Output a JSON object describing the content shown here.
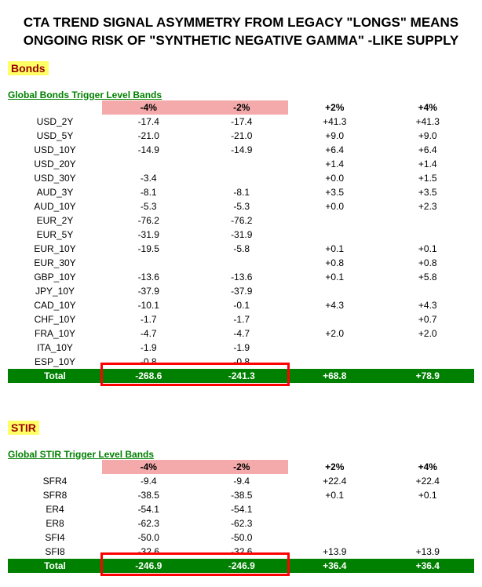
{
  "title_line1": "CTA TREND SIGNAL ASYMMETRY FROM LEGACY \"LONGS\" MEANS",
  "title_line2": "ONGOING RISK OF \"SYNTHETIC NEGATIVE GAMMA\" -LIKE SUPPLY",
  "colors": {
    "highlight_yellow": "#ffff66",
    "section_text": "#990000",
    "green_text": "#008000",
    "header_neg_bg": "#f4aaaa",
    "total_bg": "#008000",
    "total_text": "#ffffff",
    "red_box": "#ff0000",
    "background": "#ffffff"
  },
  "columns": {
    "c_neg4": "-4%",
    "c_neg2": "-2%",
    "c_pos2": "+2%",
    "c_pos4": "+4%"
  },
  "bonds": {
    "label": "Bonds",
    "subhead": "Global Bonds Trigger Level Bands",
    "rows": [
      {
        "name": "USD_2Y",
        "neg4": "-17.4",
        "neg2": "-17.4",
        "pos2": "+41.3",
        "pos4": "+41.3"
      },
      {
        "name": "USD_5Y",
        "neg4": "-21.0",
        "neg2": "-21.0",
        "pos2": "+9.0",
        "pos4": "+9.0"
      },
      {
        "name": "USD_10Y",
        "neg4": "-14.9",
        "neg2": "-14.9",
        "pos2": "+6.4",
        "pos4": "+6.4"
      },
      {
        "name": "USD_20Y",
        "neg4": "",
        "neg2": "",
        "pos2": "+1.4",
        "pos4": "+1.4"
      },
      {
        "name": "USD_30Y",
        "neg4": "-3.4",
        "neg2": "",
        "pos2": "+0.0",
        "pos4": "+1.5"
      },
      {
        "name": "AUD_3Y",
        "neg4": "-8.1",
        "neg2": "-8.1",
        "pos2": "+3.5",
        "pos4": "+3.5"
      },
      {
        "name": "AUD_10Y",
        "neg4": "-5.3",
        "neg2": "-5.3",
        "pos2": "+0.0",
        "pos4": "+2.3"
      },
      {
        "name": "EUR_2Y",
        "neg4": "-76.2",
        "neg2": "-76.2",
        "pos2": "",
        "pos4": ""
      },
      {
        "name": "EUR_5Y",
        "neg4": "-31.9",
        "neg2": "-31.9",
        "pos2": "",
        "pos4": ""
      },
      {
        "name": "EUR_10Y",
        "neg4": "-19.5",
        "neg2": "-5.8",
        "pos2": "+0.1",
        "pos4": "+0.1"
      },
      {
        "name": "EUR_30Y",
        "neg4": "",
        "neg2": "",
        "pos2": "+0.8",
        "pos4": "+0.8"
      },
      {
        "name": "GBP_10Y",
        "neg4": "-13.6",
        "neg2": "-13.6",
        "pos2": "+0.1",
        "pos4": "+5.8"
      },
      {
        "name": "JPY_10Y",
        "neg4": "-37.9",
        "neg2": "-37.9",
        "pos2": "",
        "pos4": ""
      },
      {
        "name": "CAD_10Y",
        "neg4": "-10.1",
        "neg2": "-0.1",
        "pos2": "+4.3",
        "pos4": "+4.3"
      },
      {
        "name": "CHF_10Y",
        "neg4": "-1.7",
        "neg2": "-1.7",
        "pos2": "",
        "pos4": "+0.7"
      },
      {
        "name": "FRA_10Y",
        "neg4": "-4.7",
        "neg2": "-4.7",
        "pos2": "+2.0",
        "pos4": "+2.0"
      },
      {
        "name": "ITA_10Y",
        "neg4": "-1.9",
        "neg2": "-1.9",
        "pos2": "",
        "pos4": ""
      },
      {
        "name": "ESP_10Y",
        "neg4": "-0.8",
        "neg2": "-0.8",
        "pos2": "",
        "pos4": ""
      }
    ],
    "total": {
      "label": "Total",
      "neg4": "-268.6",
      "neg2": "-241.3",
      "pos2": "+68.8",
      "pos4": "+78.9"
    }
  },
  "stir": {
    "label": "STIR",
    "subhead": "Global STIR Trigger Level Bands",
    "rows": [
      {
        "name": "SFR4",
        "neg4": "-9.4",
        "neg2": "-9.4",
        "pos2": "+22.4",
        "pos4": "+22.4"
      },
      {
        "name": "SFR8",
        "neg4": "-38.5",
        "neg2": "-38.5",
        "pos2": "+0.1",
        "pos4": "+0.1"
      },
      {
        "name": "ER4",
        "neg4": "-54.1",
        "neg2": "-54.1",
        "pos2": "",
        "pos4": ""
      },
      {
        "name": "ER8",
        "neg4": "-62.3",
        "neg2": "-62.3",
        "pos2": "",
        "pos4": ""
      },
      {
        "name": "SFI4",
        "neg4": "-50.0",
        "neg2": "-50.0",
        "pos2": "",
        "pos4": ""
      },
      {
        "name": "SFI8",
        "neg4": "-32.6",
        "neg2": "-32.6",
        "pos2": "+13.9",
        "pos4": "+13.9"
      }
    ],
    "total": {
      "label": "Total",
      "neg4": "-246.9",
      "neg2": "-246.9",
      "pos2": "+36.4",
      "pos4": "+36.4"
    }
  }
}
